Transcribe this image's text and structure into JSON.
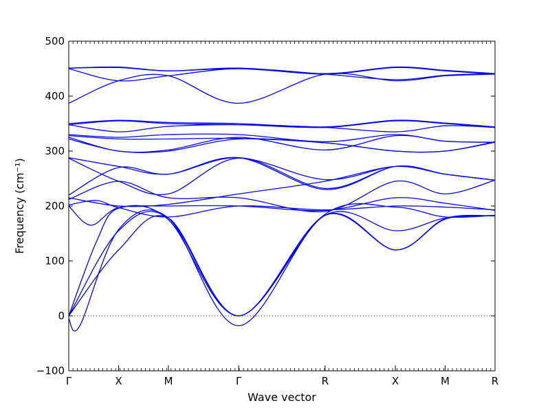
{
  "chart_data": {
    "type": "line",
    "title": "",
    "xlabel": "Wave vector",
    "ylabel": "Frequency (cm⁻¹)",
    "ylim": [
      -100,
      500
    ],
    "yticks": [
      -100,
      0,
      100,
      200,
      300,
      400,
      500
    ],
    "xlim": [
      0,
      7.7
    ],
    "xticks": [
      {
        "label": "Γ",
        "x": 0
      },
      {
        "label": "X",
        "x": 0.9
      },
      {
        "label": "M",
        "x": 1.8
      },
      {
        "label": "Γ",
        "x": 3.07
      },
      {
        "label": "R",
        "x": 4.63
      },
      {
        "label": "X",
        "x": 5.9
      },
      {
        "label": "M",
        "x": 6.8
      },
      {
        "label": "R",
        "x": 7.7
      }
    ],
    "zero_line": 0,
    "grid": false,
    "line_color": "#0000ff",
    "series": [
      {
        "values": [
          [
            0,
            0
          ],
          [
            0.9,
            155
          ],
          [
            1.8,
            178
          ],
          [
            3.07,
            0
          ],
          [
            4.63,
            183
          ],
          [
            5.9,
            120
          ],
          [
            6.8,
            177
          ],
          [
            7.7,
            182
          ]
        ]
      },
      {
        "values": [
          [
            0,
            0
          ],
          [
            0.9,
            120
          ],
          [
            1.8,
            178
          ],
          [
            3.07,
            0
          ],
          [
            4.63,
            183
          ],
          [
            5.9,
            155
          ],
          [
            6.8,
            178
          ],
          [
            7.7,
            183
          ]
        ]
      },
      {
        "values": [
          [
            0,
            0
          ],
          [
            0.5,
            135
          ],
          [
            0.9,
            196
          ],
          [
            1.8,
            175
          ],
          [
            3.07,
            0
          ],
          [
            4.63,
            185
          ],
          [
            5.9,
            198
          ],
          [
            6.8,
            180
          ],
          [
            7.7,
            183
          ]
        ]
      },
      {
        "values": [
          [
            0,
            -5
          ],
          [
            0.2,
            -18
          ],
          [
            0.9,
            157
          ],
          [
            1.8,
            178
          ],
          [
            3.07,
            -18
          ],
          [
            4.63,
            183
          ],
          [
            5.9,
            120
          ],
          [
            6.8,
            176
          ],
          [
            7.7,
            182
          ]
        ]
      },
      {
        "values": [
          [
            0,
            200
          ],
          [
            0.4,
            165
          ],
          [
            0.9,
            197
          ],
          [
            1.8,
            200
          ],
          [
            3.07,
            200
          ],
          [
            4.63,
            192
          ],
          [
            5.9,
            215
          ],
          [
            6.8,
            205
          ],
          [
            7.7,
            192
          ]
        ]
      },
      {
        "values": [
          [
            0,
            202
          ],
          [
            0.5,
            210
          ],
          [
            0.9,
            197
          ],
          [
            1.8,
            180
          ],
          [
            3.07,
            200
          ],
          [
            4.63,
            193
          ],
          [
            5.9,
            200
          ],
          [
            6.8,
            198
          ],
          [
            7.7,
            193
          ]
        ]
      },
      {
        "values": [
          [
            0,
            212
          ],
          [
            0.9,
            245
          ],
          [
            1.8,
            215
          ],
          [
            3.07,
            215
          ],
          [
            4.63,
            190
          ],
          [
            5.9,
            245
          ],
          [
            6.8,
            222
          ],
          [
            7.7,
            247
          ]
        ]
      },
      {
        "values": [
          [
            0,
            215
          ],
          [
            0.9,
            200
          ],
          [
            1.8,
            203
          ],
          [
            3.07,
            222
          ],
          [
            4.63,
            245
          ],
          [
            5.9,
            272
          ],
          [
            6.8,
            258
          ],
          [
            7.7,
            247
          ]
        ]
      },
      {
        "values": [
          [
            0,
            220
          ],
          [
            0.9,
            270
          ],
          [
            1.8,
            258
          ],
          [
            3.07,
            288
          ],
          [
            4.63,
            230
          ],
          [
            5.9,
            272
          ],
          [
            6.8,
            258
          ],
          [
            7.7,
            247
          ]
        ]
      },
      {
        "values": [
          [
            0,
            287
          ],
          [
            0.9,
            245
          ],
          [
            1.8,
            222
          ],
          [
            3.07,
            287
          ],
          [
            4.63,
            232
          ],
          [
            5.9,
            272
          ],
          [
            6.8,
            258
          ],
          [
            7.7,
            247
          ]
        ]
      },
      {
        "values": [
          [
            0,
            288
          ],
          [
            0.9,
            272
          ],
          [
            1.8,
            258
          ],
          [
            3.07,
            288
          ],
          [
            4.63,
            248
          ],
          [
            5.9,
            272
          ],
          [
            6.8,
            258
          ],
          [
            7.7,
            247
          ]
        ]
      },
      {
        "values": [
          [
            0,
            322
          ],
          [
            0.9,
            300
          ],
          [
            1.8,
            300
          ],
          [
            3.07,
            322
          ],
          [
            4.63,
            315
          ],
          [
            5.9,
            300
          ],
          [
            6.8,
            300
          ],
          [
            7.7,
            316
          ]
        ]
      },
      {
        "values": [
          [
            0,
            325
          ],
          [
            0.9,
            300
          ],
          [
            1.8,
            302
          ],
          [
            3.07,
            325
          ],
          [
            4.63,
            302
          ],
          [
            5.9,
            328
          ],
          [
            6.8,
            318
          ],
          [
            7.7,
            316
          ]
        ]
      },
      {
        "values": [
          [
            0,
            328
          ],
          [
            0.9,
            322
          ],
          [
            1.8,
            322
          ],
          [
            3.07,
            323
          ],
          [
            4.63,
            315
          ],
          [
            5.9,
            300
          ],
          [
            6.8,
            300
          ],
          [
            7.7,
            317
          ]
        ]
      },
      {
        "values": [
          [
            0,
            330
          ],
          [
            0.9,
            325
          ],
          [
            1.8,
            330
          ],
          [
            3.07,
            330
          ],
          [
            4.63,
            317
          ],
          [
            5.9,
            330
          ],
          [
            6.8,
            318
          ],
          [
            7.7,
            316
          ]
        ]
      },
      {
        "values": [
          [
            0,
            348
          ],
          [
            0.9,
            335
          ],
          [
            1.8,
            345
          ],
          [
            3.07,
            348
          ],
          [
            4.63,
            343
          ],
          [
            5.9,
            335
          ],
          [
            6.8,
            346
          ],
          [
            7.7,
            343
          ]
        ]
      },
      {
        "values": [
          [
            0,
            348
          ],
          [
            0.9,
            355
          ],
          [
            1.8,
            350
          ],
          [
            3.07,
            348
          ],
          [
            4.63,
            343
          ],
          [
            5.9,
            355
          ],
          [
            6.8,
            350
          ],
          [
            7.7,
            343
          ]
        ]
      },
      {
        "values": [
          [
            0,
            350
          ],
          [
            0.9,
            356
          ],
          [
            1.8,
            352
          ],
          [
            3.07,
            350
          ],
          [
            4.63,
            344
          ],
          [
            5.9,
            356
          ],
          [
            6.8,
            351
          ],
          [
            7.7,
            344
          ]
        ]
      },
      {
        "values": [
          [
            0,
            387
          ],
          [
            0.9,
            428
          ],
          [
            1.8,
            437
          ],
          [
            3.07,
            387
          ],
          [
            4.63,
            440
          ],
          [
            5.9,
            428
          ],
          [
            6.8,
            437
          ],
          [
            7.7,
            440
          ]
        ]
      },
      {
        "values": [
          [
            0,
            450
          ],
          [
            0.9,
            428
          ],
          [
            1.8,
            437
          ],
          [
            3.07,
            450
          ],
          [
            4.63,
            440
          ],
          [
            5.9,
            452
          ],
          [
            6.8,
            446
          ],
          [
            7.7,
            440
          ]
        ]
      },
      {
        "values": [
          [
            0,
            451
          ],
          [
            0.9,
            452
          ],
          [
            1.8,
            446
          ],
          [
            3.07,
            451
          ],
          [
            4.63,
            440
          ],
          [
            5.9,
            430
          ],
          [
            6.8,
            438
          ],
          [
            7.7,
            441
          ]
        ]
      },
      {
        "values": [
          [
            0,
            451
          ],
          [
            0.9,
            453
          ],
          [
            1.8,
            446
          ],
          [
            3.07,
            450
          ],
          [
            4.63,
            441
          ],
          [
            5.9,
            453
          ],
          [
            6.8,
            447
          ],
          [
            7.7,
            441
          ]
        ]
      }
    ]
  }
}
